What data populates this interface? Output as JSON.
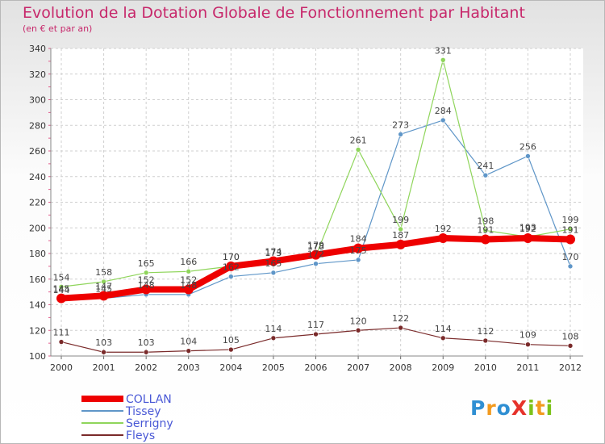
{
  "title": "Evolution de la Dotation Globale de Fonctionnement par Habitant",
  "subtitle": "(en € et par an)",
  "logo": "ProXiti",
  "colors": {
    "title": "#c7286b",
    "axis_text": "#333333",
    "value_labels": "#444444",
    "legend_text": "#4a59d6"
  },
  "chart_data": {
    "type": "line",
    "x": [
      "2000",
      "2001",
      "2002",
      "2003",
      "2004",
      "2005",
      "2006",
      "2007",
      "2008",
      "2009",
      "2010",
      "2011",
      "2012"
    ],
    "ylim": [
      100,
      340
    ],
    "yticks": [
      100,
      120,
      140,
      160,
      180,
      200,
      220,
      240,
      260,
      280,
      300,
      320,
      340
    ],
    "grid": true,
    "legend_position": "bottom-left",
    "series": [
      {
        "name": "COLLAN",
        "color": "#ee0000",
        "width": 8,
        "values": [
          145,
          147,
          152,
          152,
          170,
          174,
          179,
          184,
          187,
          192,
          191,
          192,
          191
        ]
      },
      {
        "name": "Tissey",
        "color": "#5f96c8",
        "width": 1.2,
        "values": [
          144,
          145,
          148,
          148,
          162,
          165,
          172,
          175,
          273,
          284,
          241,
          256,
          170
        ]
      },
      {
        "name": "Serrigny",
        "color": "#8fd55b",
        "width": 1.2,
        "values": [
          154,
          158,
          165,
          166,
          170,
          173,
          178,
          261,
          199,
          331,
          198,
          193,
          199
        ]
      },
      {
        "name": "Fleys",
        "color": "#7a2a2a",
        "width": 1.2,
        "values": [
          111,
          103,
          103,
          104,
          105,
          114,
          117,
          120,
          122,
          114,
          112,
          109,
          108
        ]
      }
    ]
  }
}
